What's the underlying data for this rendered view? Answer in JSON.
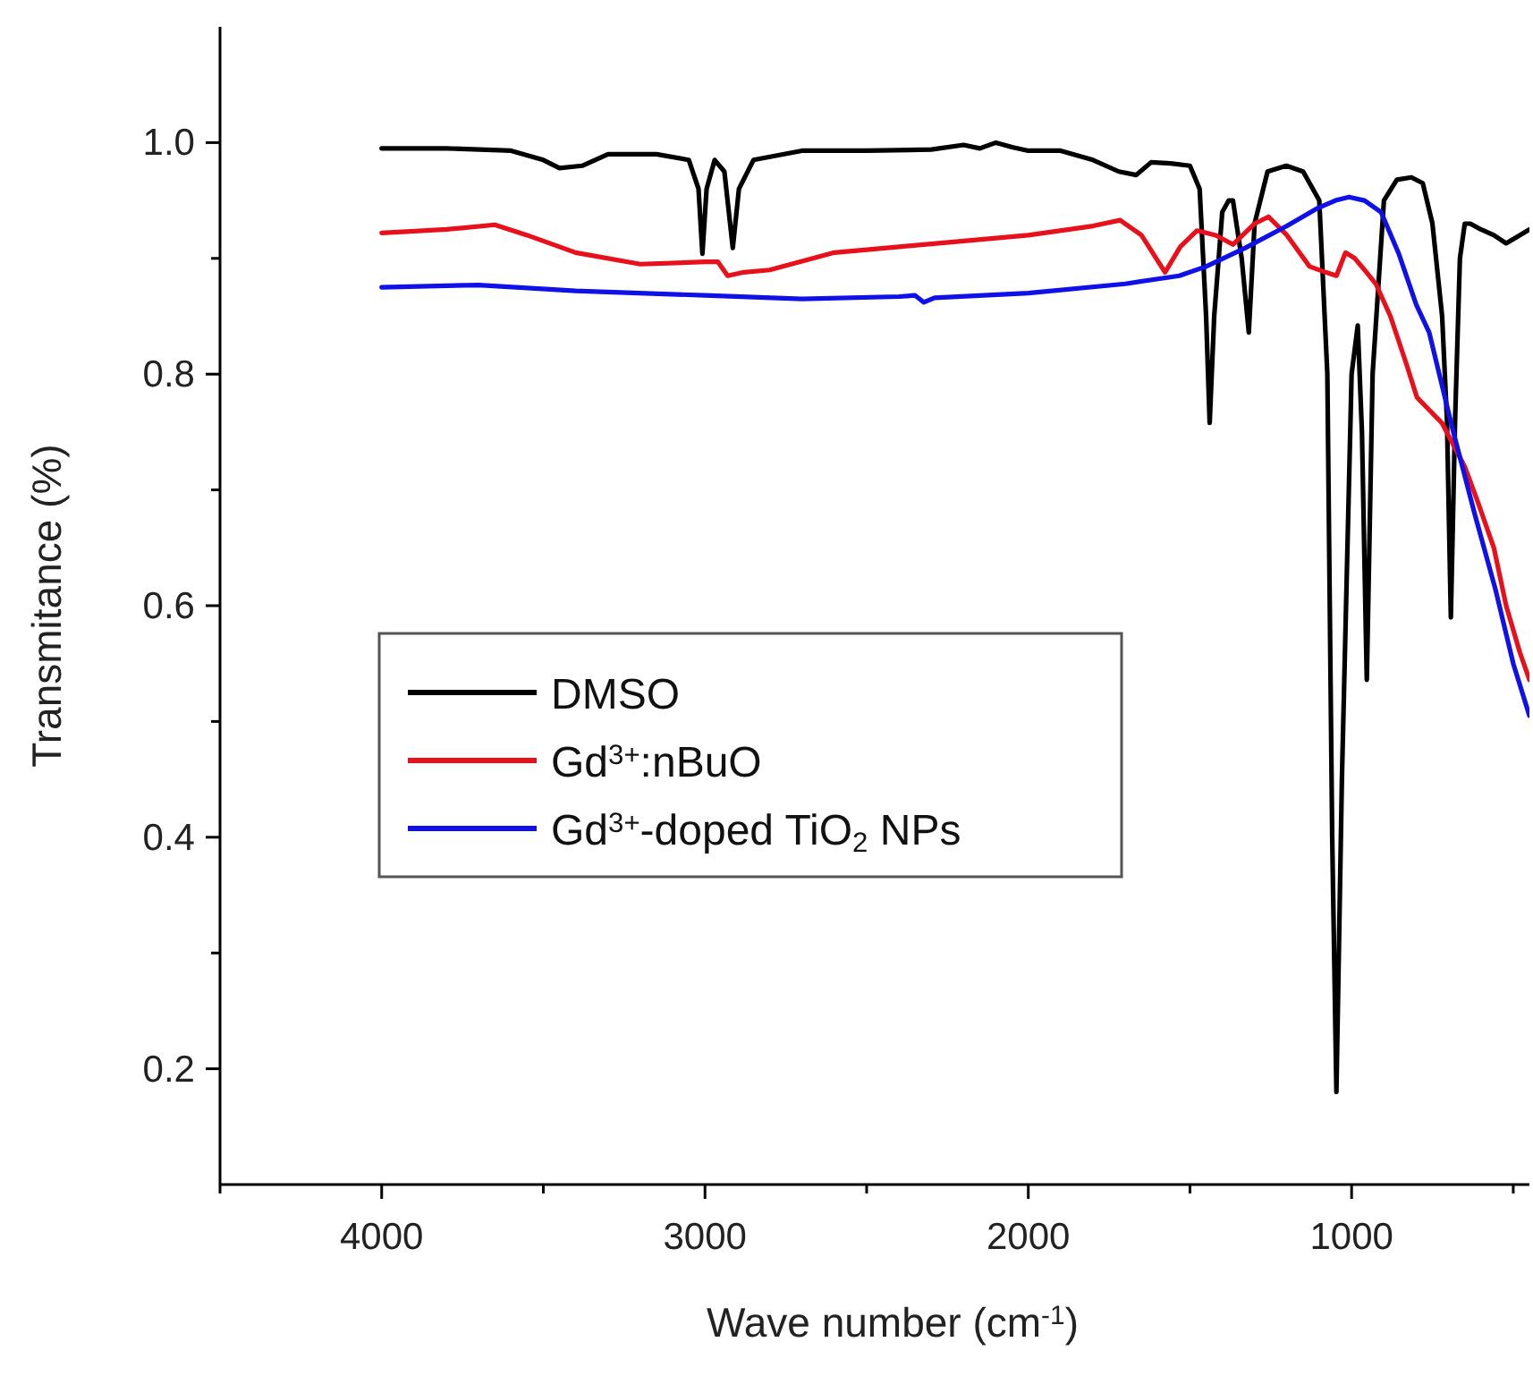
{
  "chart_data": {
    "type": "line",
    "xlabel": "Wave number (cm$^{-1}$)",
    "ylabel": "Transmitance (%)",
    "xlim": [
      4500,
      450
    ],
    "ylim": [
      0.1,
      1.1
    ],
    "xticks": [
      {
        "value": 4500,
        "label": null
      },
      4000,
      {
        "value": 3500,
        "label": null
      },
      3000,
      {
        "value": 2500,
        "label": null
      },
      2000,
      {
        "value": 1500,
        "label": null
      },
      1000,
      {
        "value": 500,
        "label": null
      }
    ],
    "yticks": [
      0.2,
      {
        "value": 0.3,
        "label": null
      },
      0.4,
      {
        "value": 0.5,
        "label": null
      },
      0.6,
      {
        "value": 0.7,
        "label": null
      },
      0.8,
      {
        "value": 0.9,
        "label": null
      },
      {
        "value": 1,
        "label": "1.0"
      }
    ],
    "legend": "left",
    "series": [
      {
        "name": "DMSO",
        "color": "#000000",
        "x": [
          4000,
          3800,
          3600,
          3500,
          3450,
          3380,
          3300,
          3150,
          3050,
          3020,
          3008,
          2995,
          2970,
          2940,
          2914,
          2895,
          2850,
          2700,
          2500,
          2300,
          2200,
          2150,
          2100,
          2050,
          2000,
          1900,
          1800,
          1720,
          1666,
          1620,
          1560,
          1500,
          1470,
          1450,
          1439,
          1425,
          1400,
          1380,
          1367,
          1340,
          1318,
          1300,
          1260,
          1202,
          1150,
          1100,
          1075,
          1060,
          1047,
          1030,
          1000,
          981,
          968,
          953,
          935,
          900,
          860,
          815,
          780,
          750,
          720,
          705,
          693,
          680,
          665,
          650,
          633,
          600,
          560,
          522,
          480,
          450
        ],
        "values": [
          0.995,
          0.995,
          0.993,
          0.985,
          0.978,
          0.98,
          0.99,
          0.99,
          0.985,
          0.96,
          0.904,
          0.96,
          0.985,
          0.975,
          0.909,
          0.96,
          0.985,
          0.993,
          0.993,
          0.994,
          0.998,
          0.995,
          1.0,
          0.996,
          0.993,
          0.993,
          0.985,
          0.975,
          0.972,
          0.983,
          0.982,
          0.98,
          0.96,
          0.85,
          0.758,
          0.85,
          0.94,
          0.95,
          0.95,
          0.9,
          0.836,
          0.93,
          0.975,
          0.98,
          0.975,
          0.95,
          0.8,
          0.4,
          0.18,
          0.45,
          0.8,
          0.842,
          0.75,
          0.536,
          0.8,
          0.95,
          0.968,
          0.97,
          0.965,
          0.93,
          0.85,
          0.76,
          0.59,
          0.76,
          0.9,
          0.93,
          0.93,
          0.925,
          0.92,
          0.913,
          0.92,
          0.925
        ]
      },
      {
        "name": "Gd$^{3+}$:nBuO",
        "color": "#e8101a",
        "x": [
          4000,
          3800,
          3650,
          3550,
          3400,
          3200,
          3000,
          2960,
          2930,
          2880,
          2800,
          2600,
          2400,
          2200,
          2000,
          1800,
          1716,
          1650,
          1577,
          1530,
          1478,
          1420,
          1367,
          1300,
          1257,
          1200,
          1130,
          1080,
          1047,
          1019,
          990,
          960,
          925,
          880,
          832,
          798,
          760,
          721,
          650,
          610,
          560,
          522,
          480,
          450
        ],
        "values": [
          0.922,
          0.925,
          0.929,
          0.92,
          0.905,
          0.895,
          0.897,
          0.897,
          0.885,
          0.888,
          0.89,
          0.905,
          0.91,
          0.915,
          0.92,
          0.928,
          0.933,
          0.92,
          0.888,
          0.91,
          0.924,
          0.92,
          0.912,
          0.93,
          0.936,
          0.92,
          0.893,
          0.888,
          0.885,
          0.905,
          0.9,
          0.89,
          0.878,
          0.85,
          0.81,
          0.78,
          0.769,
          0.758,
          0.72,
          0.69,
          0.65,
          0.6,
          0.56,
          0.536
        ]
      },
      {
        "name": "Gd$^{3+}$-doped TiO$_{2}$ NPs",
        "color": "#1010e8",
        "x": [
          4000,
          3700,
          3400,
          3000,
          2700,
          2400,
          2350,
          2323,
          2290,
          2000,
          1700,
          1533,
          1450,
          1329,
          1200,
          1108,
          1050,
          1008,
          960,
          909,
          854,
          800,
          760,
          688,
          620,
          555,
          500,
          450
        ],
        "values": [
          0.875,
          0.877,
          0.872,
          0.868,
          0.865,
          0.867,
          0.868,
          0.862,
          0.866,
          0.87,
          0.878,
          0.885,
          0.893,
          0.909,
          0.928,
          0.943,
          0.95,
          0.953,
          0.95,
          0.94,
          0.904,
          0.86,
          0.836,
          0.753,
          0.68,
          0.614,
          0.55,
          0.505
        ]
      }
    ]
  }
}
